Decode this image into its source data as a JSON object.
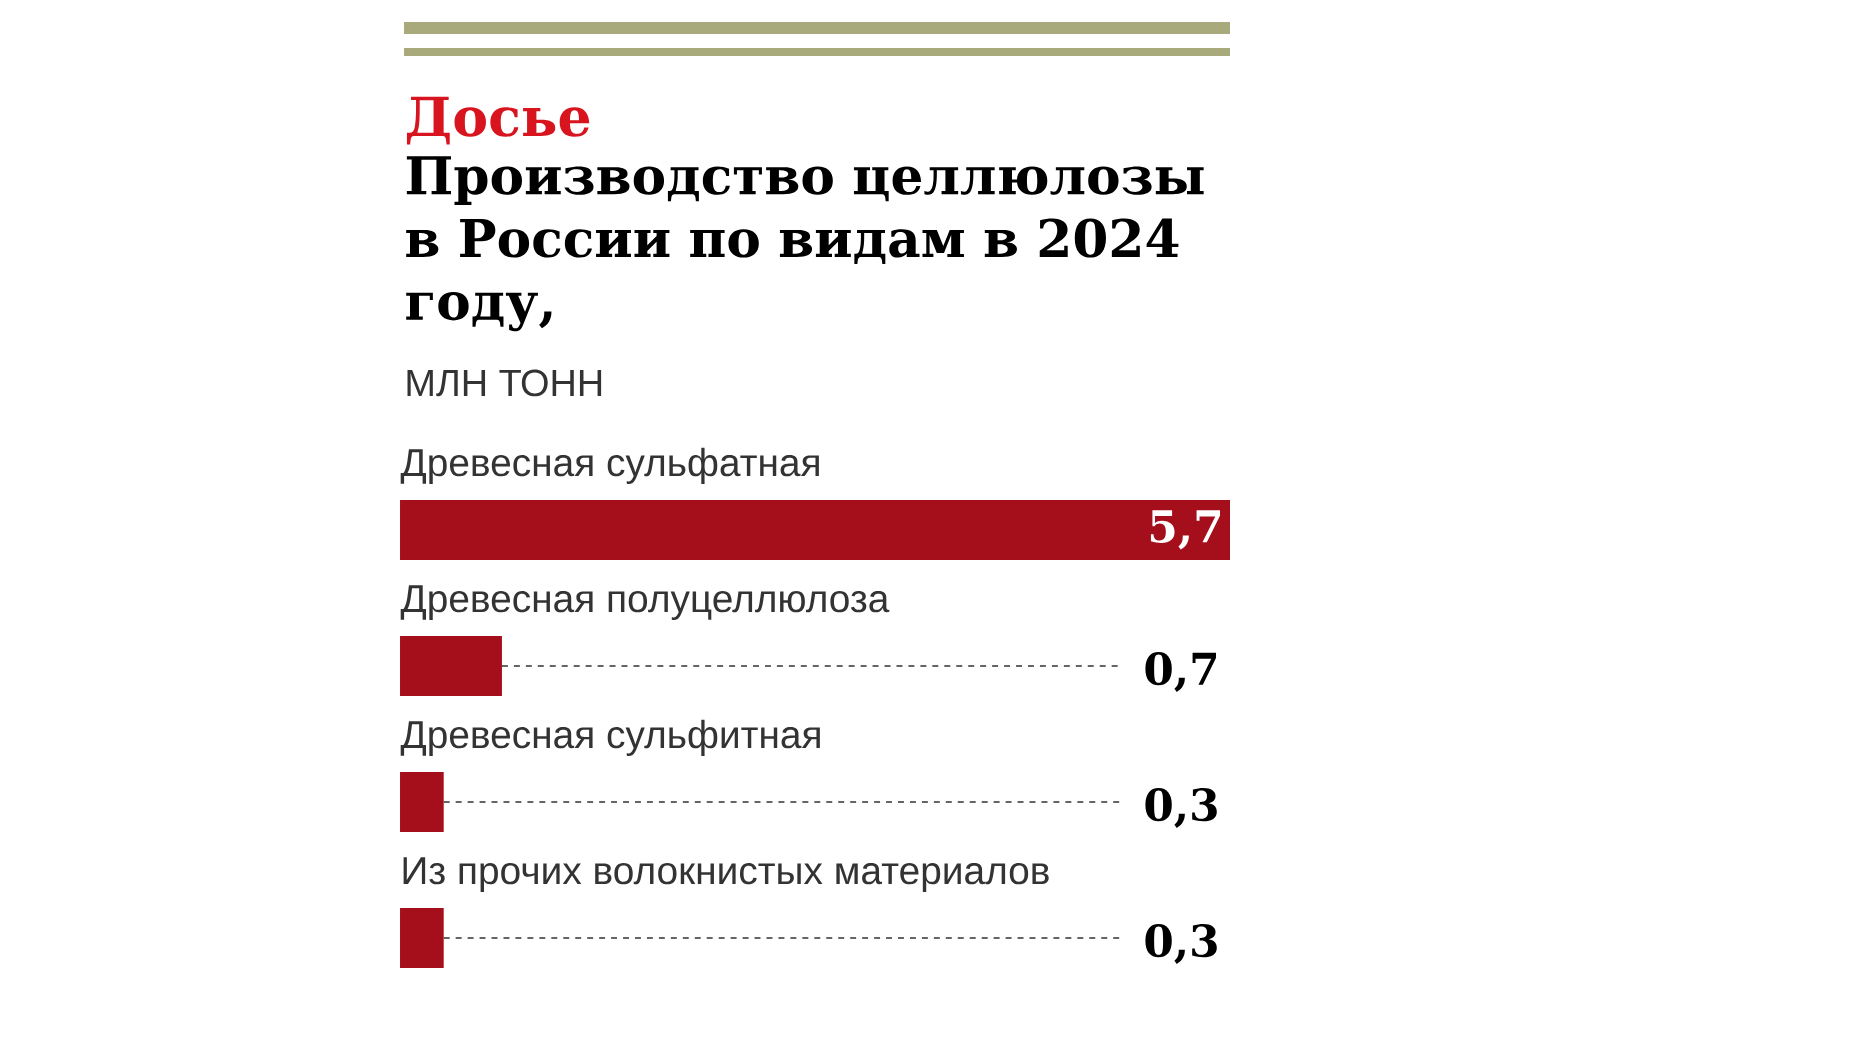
{
  "chart_data": {
    "type": "bar",
    "orientation": "horizontal",
    "annotations": [
      "Досье"
    ],
    "title": "Производство целлюлозы в России по видам в 2024 году,",
    "subtitle": "МЛН ТОНН",
    "categories": [
      "Древесная сульфатная",
      "Древесная полуцеллюлоза",
      "Древесная сульфитная",
      "Из прочих волокнистых материалов"
    ],
    "values": [
      5.7,
      0.7,
      0.3,
      0.3
    ],
    "value_labels": [
      "5,7",
      "0,7",
      "0,3",
      "0,3"
    ],
    "color": "#a50f1c"
  }
}
